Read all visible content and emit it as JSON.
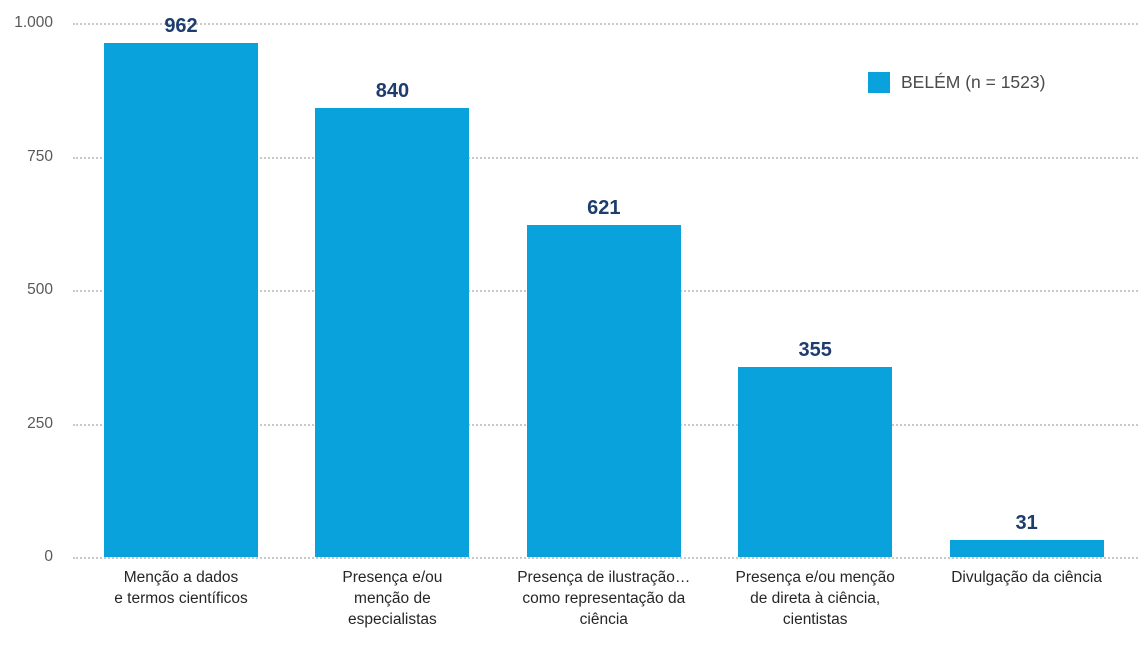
{
  "chart_data": {
    "type": "bar",
    "title": "",
    "legend": {
      "label": "BELÉM (n = 1523)",
      "position": "top-right"
    },
    "categories": [
      "Menção a dados\ne termos científicos",
      "Presença e/ou\nmenção de\nespecialistas",
      "Presença de ilustração…\ncomo representação da\nciência",
      "Presença e/ou menção\nde direta à ciência,\ncientistas",
      "Divulgação da ciência"
    ],
    "values": [
      962,
      840,
      621,
      355,
      31
    ],
    "ylim": [
      0,
      1000
    ],
    "yticks": [
      {
        "value": 0,
        "label": "0"
      },
      {
        "value": 250,
        "label": "250"
      },
      {
        "value": 500,
        "label": "500"
      },
      {
        "value": 750,
        "label": "750"
      },
      {
        "value": 1000,
        "label": "1.000"
      }
    ],
    "grid": "horizontal-dotted",
    "xlabel": "",
    "ylabel": "",
    "colors": {
      "bar": "#0AA2DC",
      "value_label": "#1C3D6E",
      "axis_tick": "#595959",
      "category_label": "#262626",
      "gridline": "#C9C9C9",
      "legend_text": "#4A4A4A"
    }
  }
}
